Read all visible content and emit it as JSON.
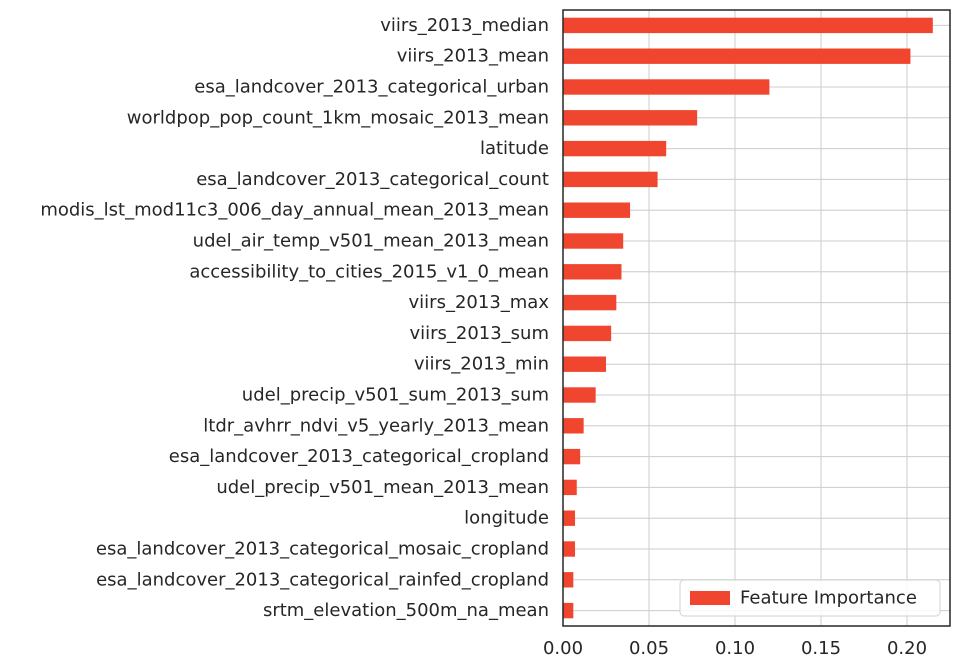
{
  "chart_data": {
    "type": "bar",
    "orientation": "horizontal",
    "categories": [
      "viirs_2013_median",
      "viirs_2013_mean",
      "esa_landcover_2013_categorical_urban",
      "worldpop_pop_count_1km_mosaic_2013_mean",
      "latitude",
      "esa_landcover_2013_categorical_count",
      "modis_lst_mod11c3_006_day_annual_mean_2013_mean",
      "udel_air_temp_v501_mean_2013_mean",
      "accessibility_to_cities_2015_v1_0_mean",
      "viirs_2013_max",
      "viirs_2013_sum",
      "viirs_2013_min",
      "udel_precip_v501_sum_2013_sum",
      "ltdr_avhrr_ndvi_v5_yearly_2013_mean",
      "esa_landcover_2013_categorical_cropland",
      "udel_precip_v501_mean_2013_mean",
      "longitude",
      "esa_landcover_2013_categorical_mosaic_cropland",
      "esa_landcover_2013_categorical_rainfed_cropland",
      "srtm_elevation_500m_na_mean"
    ],
    "series": [
      {
        "name": "Feature Importance",
        "color": "#f0462f",
        "values": [
          0.215,
          0.202,
          0.12,
          0.078,
          0.06,
          0.055,
          0.039,
          0.035,
          0.034,
          0.031,
          0.028,
          0.025,
          0.019,
          0.012,
          0.01,
          0.008,
          0.007,
          0.007,
          0.006,
          0.006
        ]
      }
    ],
    "xlim": [
      0,
      0.225
    ],
    "xticks": [
      0.0,
      0.05,
      0.1,
      0.15,
      0.2
    ],
    "xtick_labels": [
      "0.00",
      "0.05",
      "0.10",
      "0.15",
      "0.20"
    ],
    "grid": true,
    "legend_position": "lower-right",
    "title": "",
    "xlabel": "",
    "ylabel": ""
  }
}
